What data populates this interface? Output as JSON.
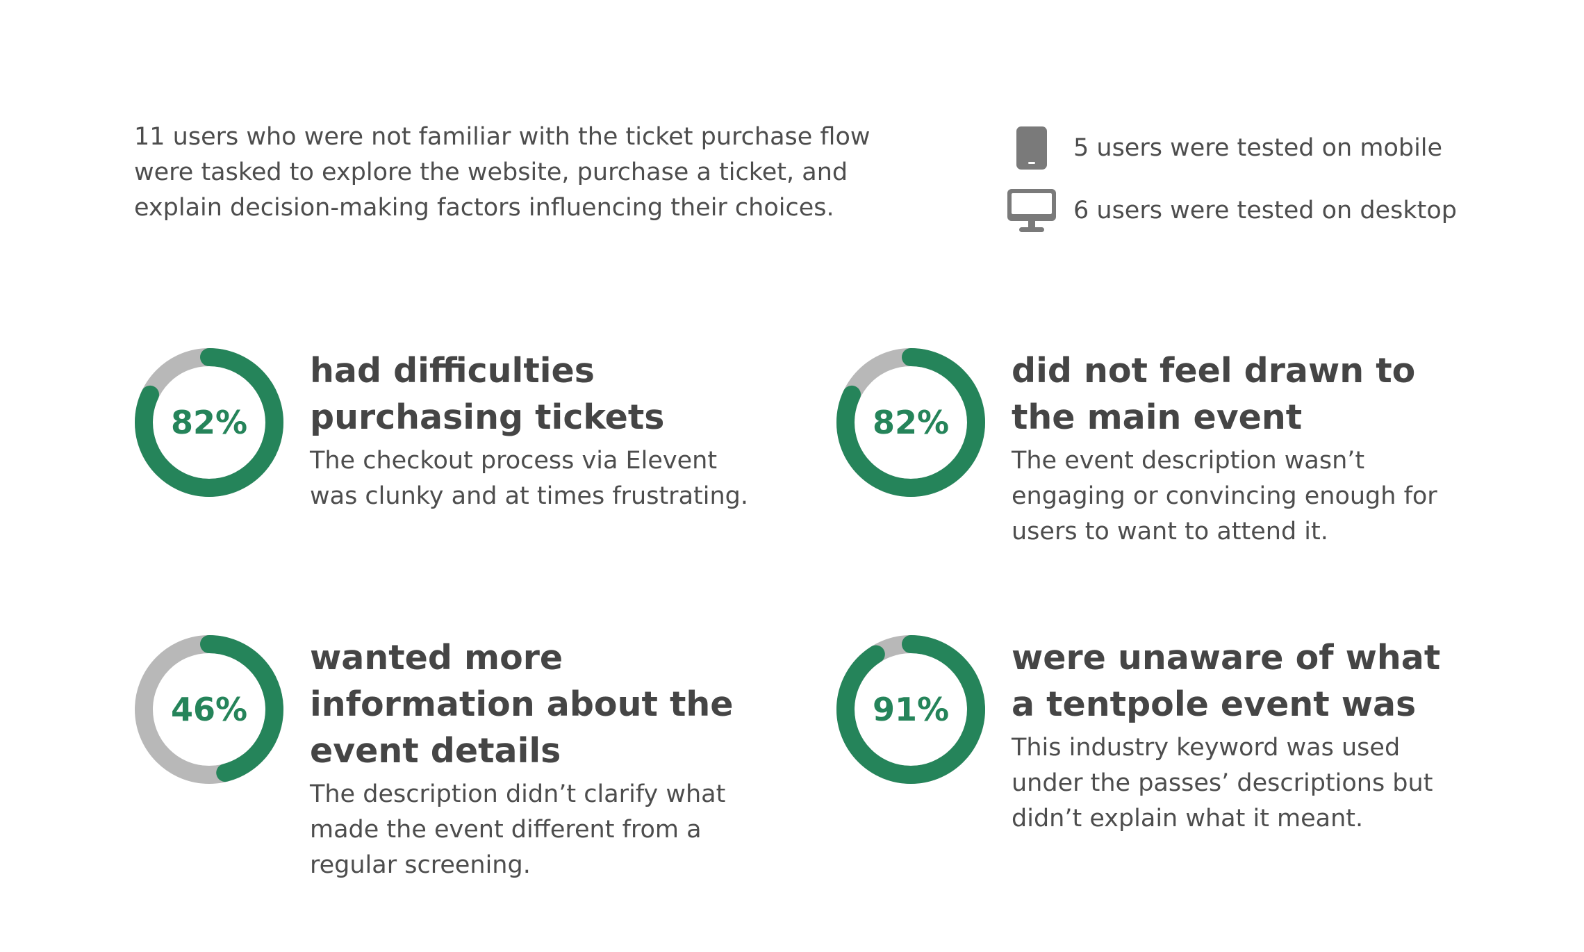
{
  "intro": {
    "text": "11 users who were not familiar with the ticket purchase flow were tasked to explore the website, purchase a ticket, and explain decision-making factors influencing their choices."
  },
  "devices": [
    {
      "icon": "mobile-phone-icon",
      "label": "5 users were tested on mobile"
    },
    {
      "icon": "desktop-monitor-icon",
      "label": "6 users were tested on desktop"
    }
  ],
  "colors": {
    "accent": "#25845a",
    "track": "#b8b8b8",
    "icon": "#7a7a7a",
    "text": "#4d4d4d"
  },
  "stats": [
    {
      "percent": 82,
      "percent_label": "82%",
      "title": "had difficulties purchasing tickets",
      "description": "The checkout process via Elevent was clunky and at times frustrating."
    },
    {
      "percent": 82,
      "percent_label": "82%",
      "title": "did not feel drawn to the main event",
      "description": "The event description wasn’t engaging or convincing enough for users to want to attend it."
    },
    {
      "percent": 46,
      "percent_label": "46%",
      "title": "wanted more information about the event details",
      "description": "The description didn’t clarify what made the event different from a regular screening."
    },
    {
      "percent": 91,
      "percent_label": "91%",
      "title": "were unaware of what a tentpole event was",
      "description": "This industry keyword was used under the passes’ descriptions but didn’t explain what it meant."
    }
  ]
}
